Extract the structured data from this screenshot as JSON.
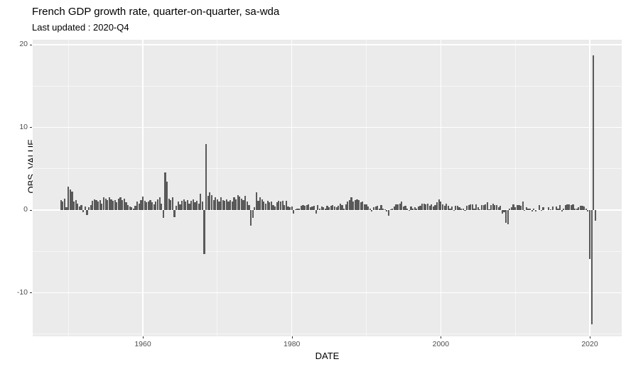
{
  "chart_data": {
    "type": "bar",
    "title": "French GDP growth rate, quarter-on-quarter, sa-wda",
    "subtitle": "Last updated : 2020-Q4",
    "xlabel": "DATE",
    "ylabel": "OBS_VALUE",
    "legend": "none",
    "grid": "on",
    "colors": {
      "bar_fill": "#595959",
      "panel_background": "#EBEBEB",
      "gridline": "#ffffff",
      "tick_label": "#4d4d4d",
      "tick_mark": "#333333",
      "title_text": "#000000"
    },
    "axes": {
      "xlim": [
        1945.21,
        2024.29
      ],
      "ylim": [
        -15.3,
        20.6
      ],
      "x_major_ticks": [
        1960,
        1980,
        2000,
        2020
      ],
      "x_minor_ticks": [
        1950,
        1970,
        1990,
        2010
      ],
      "y_major_ticks": [
        20,
        10,
        0,
        -10
      ],
      "y_minor_ticks": [
        15,
        5,
        -5,
        -15
      ]
    },
    "series_name": "OBS_VALUE",
    "start_quarter": "1949-Q1",
    "frequency": "quarterly",
    "values": [
      1.2,
      1.0,
      1.4,
      0.3,
      2.8,
      2.5,
      2.2,
      1.0,
      1.2,
      0.8,
      0.4,
      0.6,
      -0.3,
      0.4,
      -0.6,
      0.3,
      0.6,
      1.1,
      1.3,
      1.2,
      1.0,
      1.2,
      0.8,
      1.5,
      1.4,
      1.2,
      1.5,
      1.3,
      1.1,
      1.2,
      0.9,
      1.4,
      1.5,
      1.2,
      1.4,
      0.9,
      0.6,
      0.4,
      0.3,
      0.2,
      0.5,
      1.0,
      0.8,
      1.2,
      1.6,
      1.1,
      0.9,
      1.0,
      1.2,
      0.9,
      0.7,
      1.0,
      1.3,
      1.5,
      0.8,
      -1.0,
      4.5,
      3.4,
      1.4,
      1.2,
      1.5,
      -0.9,
      0.5,
      1.0,
      0.7,
      1.1,
      1.3,
      1.0,
      1.2,
      0.8,
      1.1,
      1.3,
      0.9,
      1.1,
      0.8,
      2.0,
      1.0,
      -5.3,
      8.0,
      1.7,
      2.1,
      1.8,
      1.2,
      1.5,
      1.3,
      1.0,
      1.5,
      1.2,
      1.1,
      1.3,
      1.0,
      1.2,
      1.0,
      1.5,
      1.3,
      1.8,
      1.6,
      1.4,
      1.2,
      1.7,
      1.0,
      0.6,
      -1.9,
      -1.0,
      0.3,
      2.1,
      1.1,
      1.5,
      1.3,
      1.0,
      0.8,
      1.1,
      0.9,
      1.0,
      0.6,
      0.4,
      0.9,
      1.1,
      1.0,
      1.1,
      0.6,
      1.1,
      0.4,
      0.3,
      0.4,
      -0.4,
      0.1,
      0.2,
      0.2,
      0.5,
      0.6,
      0.5,
      0.6,
      0.7,
      0.3,
      0.4,
      0.5,
      -0.4,
      0.6,
      0.2,
      0.4,
      0.3,
      0.2,
      0.5,
      0.3,
      0.5,
      0.6,
      0.4,
      0.3,
      0.5,
      0.8,
      0.6,
      0.2,
      0.7,
      1.0,
      1.2,
      1.5,
      1.0,
      1.2,
      1.3,
      1.2,
      0.9,
      1.0,
      0.7,
      0.7,
      0.4,
      0.2,
      -0.2,
      0.3,
      0.4,
      0.5,
      0.2,
      0.6,
      0.2,
      0.1,
      -0.2,
      -0.7,
      0.1,
      0.2,
      0.4,
      0.7,
      0.7,
      0.8,
      1.0,
      0.4,
      0.5,
      0.2,
      -0.1,
      0.4,
      0.2,
      0.3,
      0.2,
      0.4,
      0.5,
      0.8,
      0.8,
      0.7,
      0.8,
      0.5,
      0.7,
      0.4,
      0.6,
      0.9,
      1.3,
      1.0,
      0.7,
      0.5,
      0.8,
      0.5,
      0.2,
      0.4,
      -0.1,
      0.5,
      0.5,
      0.3,
      0.2,
      0.2,
      -0.1,
      0.5,
      0.6,
      0.7,
      0.7,
      0.2,
      0.7,
      0.3,
      0.1,
      0.6,
      0.6,
      0.7,
      0.9,
      0.1,
      0.6,
      0.8,
      0.6,
      0.6,
      0.3,
      0.5,
      -0.4,
      -0.3,
      -1.6,
      -1.7,
      0.2,
      0.3,
      0.7,
      0.3,
      0.6,
      0.6,
      0.5,
      1.0,
      -0.1,
      0.3,
      0.2,
      0.2,
      -0.2,
      0.2,
      -0.2,
      0.0,
      0.6,
      -0.1,
      0.3,
      0.0,
      0.0,
      0.3,
      0.1,
      0.4,
      0.0,
      0.4,
      0.2,
      0.6,
      -0.2,
      0.2,
      0.6,
      0.7,
      0.7,
      0.6,
      0.7,
      0.2,
      0.2,
      0.3,
      0.5,
      0.5,
      0.4,
      0.2,
      -0.2,
      -5.9,
      -13.8,
      18.7,
      -1.3
    ]
  }
}
